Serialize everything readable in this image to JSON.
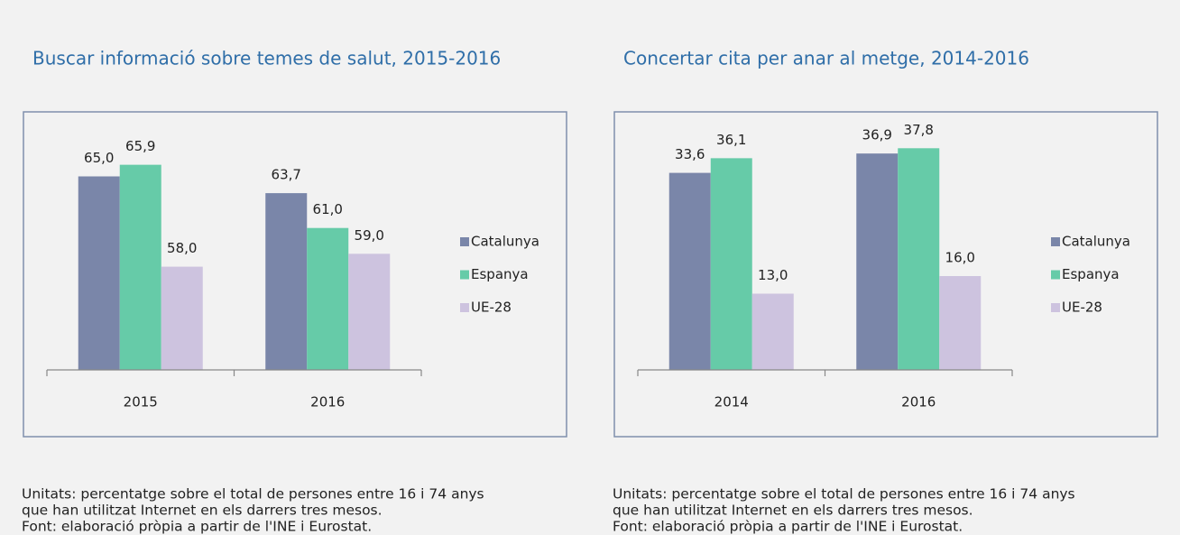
{
  "chart_data": [
    {
      "type": "bar",
      "title": "Buscar informació sobre temes de salut, 2015-2016",
      "categories": [
        "2015",
        "2016"
      ],
      "series": [
        {
          "name": "Catalunya",
          "color": "#7a86a9",
          "values": [
            65.0,
            63.7
          ],
          "value_labels": [
            "65,0",
            "63,7"
          ]
        },
        {
          "name": "Espanya",
          "color": "#66cba8",
          "values": [
            65.9,
            61.0
          ],
          "value_labels": [
            "65,9",
            "61,0"
          ]
        },
        {
          "name": "UE-28",
          "color": "#cdc3df",
          "values": [
            58.0,
            59.0
          ],
          "value_labels": [
            "58,0",
            "59,0"
          ]
        }
      ],
      "ylim": [
        50,
        70
      ],
      "legend": "right",
      "notes": [
        "Unitats: percentatge sobre el total de persones entre 16 i 74 anys",
        "que han utilitzat Internet en els darrers tres mesos.",
        "Font: elaboració pròpia a partir de l'INE i Eurostat."
      ]
    },
    {
      "type": "bar",
      "title": "Concertar cita per anar al metge, 2014-2016",
      "categories": [
        "2014",
        "2016"
      ],
      "series": [
        {
          "name": "Catalunya",
          "color": "#7a86a9",
          "values": [
            33.6,
            36.9
          ],
          "value_labels": [
            "33,6",
            "36,9"
          ]
        },
        {
          "name": "Espanya",
          "color": "#66cba8",
          "values": [
            36.1,
            37.8
          ],
          "value_labels": [
            "36,1",
            "37,8"
          ]
        },
        {
          "name": "UE-28",
          "color": "#cdc3df",
          "values": [
            13.0,
            16.0
          ],
          "value_labels": [
            "13,0",
            "16,0"
          ]
        }
      ],
      "ylim": [
        0,
        44
      ],
      "legend": "right",
      "notes": [
        "Unitats: percentatge sobre el total de persones entre 16 i 74 anys",
        "que han utilitzat Internet en els darrers tres mesos.",
        "Font: elaboració pròpia a partir de l'INE i Eurostat."
      ]
    }
  ]
}
